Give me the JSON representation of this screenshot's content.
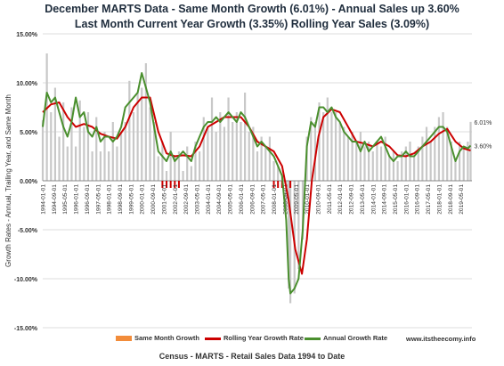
{
  "title_line1": "December MARTS Data -  Same Month Growth (6.01%) - Annual Sales up 3.60%",
  "title_line2": "Last Month Current Year Growth (3.35%)  Rolling Year Sales (3.09%)",
  "footer": "Census - MARTS - Retail Sales Data 1994 to Date",
  "site": "www.itstheecomy.info",
  "colors": {
    "bars": "#c8c8c8",
    "legend_bar": "#f28c3a",
    "rolling": "#cc0000",
    "annual": "#4a8f2e",
    "grid": "#dddddd",
    "recession": "#cc0000"
  },
  "chart_data": {
    "type": "bar+line",
    "ylabel": "Growth Rates - Annual, Trailing Year, and Same Month",
    "ylim": [
      -15,
      15
    ],
    "y_ticks": [
      "15.00%",
      "10.00%",
      "5.00%",
      "0.00%",
      "-5.00%",
      "-10.00%",
      "-15.00%"
    ],
    "y_tick_values": [
      15,
      10,
      5,
      0,
      -5,
      -10,
      -15
    ],
    "x_ticks": [
      "1994-01-01",
      "1994-09-01",
      "1995-05-01",
      "1996-01-01",
      "1996-09-01",
      "1997-05-01",
      "1998-01-01",
      "1998-09-01",
      "1999-05-01",
      "2000-01-01",
      "2000-09-01",
      "2001-05-01",
      "2002-01-01",
      "2002-09-01",
      "2003-05-01",
      "2004-01-01",
      "2004-09-01",
      "2005-05-01",
      "2006-01-01",
      "2006-09-01",
      "2007-05-01",
      "2008-01-01",
      "2008-09-01",
      "2009-05-01",
      "2010-01-01",
      "2010-09-01",
      "2011-05-01",
      "2012-01-01",
      "2012-09-01",
      "2013-05-01",
      "2014-01-01",
      "2014-09-01",
      "2015-05-01",
      "2016-01-01",
      "2016-09-01",
      "2017-05-01",
      "2018-01-01",
      "2018-09-01",
      "2019-05-01"
    ],
    "x_start": 1994.0,
    "x_end": 2020.0,
    "annotations": [
      {
        "text": "6.01%",
        "x": 2019.92,
        "y": 6.01
      },
      {
        "text": "3.60%",
        "x": 2019.92,
        "y": 3.6
      }
    ],
    "recession_marks": [
      2001.25,
      2001.5,
      2001.75,
      2002.0,
      2002.25,
      2008.0,
      2008.25,
      2008.5,
      2009.0
    ],
    "series": [
      {
        "name": "Same Month Growth",
        "kind": "bar",
        "points": [
          [
            1994.0,
            6.2
          ],
          [
            1994.25,
            13.0
          ],
          [
            1994.5,
            7.0
          ],
          [
            1994.75,
            9.5
          ],
          [
            1995.0,
            4.5
          ],
          [
            1995.25,
            8.0
          ],
          [
            1995.5,
            3.5
          ],
          [
            1995.75,
            7.5
          ],
          [
            1996.0,
            3.5
          ],
          [
            1996.25,
            8.2
          ],
          [
            1996.5,
            5.5
          ],
          [
            1996.75,
            7.0
          ],
          [
            1997.0,
            3.0
          ],
          [
            1997.25,
            6.5
          ],
          [
            1997.5,
            3.0
          ],
          [
            1997.75,
            5.0
          ],
          [
            1998.0,
            3.0
          ],
          [
            1998.25,
            6.0
          ],
          [
            1998.5,
            3.5
          ],
          [
            1998.75,
            5.0
          ],
          [
            1999.0,
            6.0
          ],
          [
            1999.25,
            10.2
          ],
          [
            1999.5,
            7.0
          ],
          [
            1999.75,
            9.0
          ],
          [
            2000.0,
            9.5
          ],
          [
            2000.25,
            12.0
          ],
          [
            2000.5,
            7.5
          ],
          [
            2000.75,
            6.0
          ],
          [
            2001.0,
            2.5
          ],
          [
            2001.25,
            4.0
          ],
          [
            2001.5,
            1.0
          ],
          [
            2001.75,
            5.0
          ],
          [
            2002.0,
            2.5
          ],
          [
            2002.25,
            3.0
          ],
          [
            2002.5,
            1.0
          ],
          [
            2002.75,
            3.5
          ],
          [
            2003.0,
            1.5
          ],
          [
            2003.25,
            4.0
          ],
          [
            2003.5,
            3.0
          ],
          [
            2003.75,
            6.5
          ],
          [
            2004.0,
            5.5
          ],
          [
            2004.25,
            8.5
          ],
          [
            2004.5,
            5.0
          ],
          [
            2004.75,
            7.0
          ],
          [
            2005.0,
            5.5
          ],
          [
            2005.25,
            8.5
          ],
          [
            2005.5,
            6.0
          ],
          [
            2005.75,
            7.0
          ],
          [
            2006.0,
            6.0
          ],
          [
            2006.25,
            9.0
          ],
          [
            2006.5,
            5.0
          ],
          [
            2006.75,
            5.5
          ],
          [
            2007.0,
            3.0
          ],
          [
            2007.25,
            4.5
          ],
          [
            2007.5,
            3.5
          ],
          [
            2007.75,
            4.5
          ],
          [
            2008.0,
            2.0
          ],
          [
            2008.25,
            1.5
          ],
          [
            2008.5,
            0.5
          ],
          [
            2008.75,
            -3.0
          ],
          [
            2008.9,
            -11.0
          ],
          [
            2009.0,
            -12.5
          ],
          [
            2009.25,
            -11.5
          ],
          [
            2009.5,
            -9.0
          ],
          [
            2009.75,
            -6.0
          ],
          [
            2010.0,
            4.5
          ],
          [
            2010.25,
            6.5
          ],
          [
            2010.5,
            6.0
          ],
          [
            2010.75,
            8.0
          ],
          [
            2011.0,
            7.0
          ],
          [
            2011.25,
            8.5
          ],
          [
            2011.5,
            7.0
          ],
          [
            2011.75,
            7.0
          ],
          [
            2012.0,
            6.0
          ],
          [
            2012.25,
            5.5
          ],
          [
            2012.5,
            4.5
          ],
          [
            2012.75,
            5.0
          ],
          [
            2013.0,
            4.0
          ],
          [
            2013.25,
            5.0
          ],
          [
            2013.5,
            3.5
          ],
          [
            2013.75,
            4.0
          ],
          [
            2014.0,
            3.0
          ],
          [
            2014.25,
            4.0
          ],
          [
            2014.5,
            3.5
          ],
          [
            2014.75,
            4.5
          ],
          [
            2015.0,
            2.5
          ],
          [
            2015.25,
            3.0
          ],
          [
            2015.5,
            2.0
          ],
          [
            2015.75,
            3.0
          ],
          [
            2016.0,
            3.5
          ],
          [
            2016.25,
            4.0
          ],
          [
            2016.5,
            2.5
          ],
          [
            2016.75,
            3.5
          ],
          [
            2017.0,
            4.5
          ],
          [
            2017.25,
            5.5
          ],
          [
            2017.5,
            4.0
          ],
          [
            2017.75,
            5.5
          ],
          [
            2018.0,
            6.5
          ],
          [
            2018.25,
            7.0
          ],
          [
            2018.5,
            5.5
          ],
          [
            2018.75,
            4.0
          ],
          [
            2019.0,
            2.0
          ],
          [
            2019.25,
            4.0
          ],
          [
            2019.5,
            3.5
          ],
          [
            2019.75,
            4.0
          ],
          [
            2019.92,
            6.01
          ]
        ]
      },
      {
        "name": "Rolling Year Growth Rate",
        "kind": "line",
        "points": [
          [
            1994.0,
            7.0
          ],
          [
            1994.5,
            7.8
          ],
          [
            1995.0,
            8.0
          ],
          [
            1995.5,
            6.5
          ],
          [
            1996.0,
            5.5
          ],
          [
            1996.5,
            5.8
          ],
          [
            1997.0,
            5.5
          ],
          [
            1997.5,
            4.8
          ],
          [
            1998.0,
            4.5
          ],
          [
            1998.5,
            4.3
          ],
          [
            1999.0,
            5.5
          ],
          [
            1999.5,
            7.5
          ],
          [
            2000.0,
            8.5
          ],
          [
            2000.5,
            8.5
          ],
          [
            2001.0,
            5.0
          ],
          [
            2001.5,
            2.8
          ],
          [
            2002.0,
            2.5
          ],
          [
            2002.5,
            2.6
          ],
          [
            2003.0,
            2.5
          ],
          [
            2003.5,
            3.5
          ],
          [
            2004.0,
            5.5
          ],
          [
            2004.5,
            6.0
          ],
          [
            2005.0,
            6.5
          ],
          [
            2005.5,
            6.5
          ],
          [
            2006.0,
            6.5
          ],
          [
            2006.5,
            5.5
          ],
          [
            2007.0,
            4.0
          ],
          [
            2007.5,
            3.5
          ],
          [
            2008.0,
            3.0
          ],
          [
            2008.5,
            1.5
          ],
          [
            2008.9,
            -2.0
          ],
          [
            2009.3,
            -7.0
          ],
          [
            2009.7,
            -9.5
          ],
          [
            2010.0,
            -6.0
          ],
          [
            2010.3,
            0.0
          ],
          [
            2010.7,
            4.5
          ],
          [
            2011.0,
            6.5
          ],
          [
            2011.5,
            7.3
          ],
          [
            2012.0,
            7.0
          ],
          [
            2012.5,
            5.5
          ],
          [
            2013.0,
            4.0
          ],
          [
            2013.5,
            3.8
          ],
          [
            2014.0,
            3.5
          ],
          [
            2014.5,
            4.0
          ],
          [
            2015.0,
            3.5
          ],
          [
            2015.5,
            2.6
          ],
          [
            2016.0,
            2.5
          ],
          [
            2016.5,
            2.8
          ],
          [
            2017.0,
            3.5
          ],
          [
            2017.5,
            4.0
          ],
          [
            2018.0,
            4.8
          ],
          [
            2018.5,
            5.3
          ],
          [
            2019.0,
            4.0
          ],
          [
            2019.5,
            3.3
          ],
          [
            2019.92,
            3.09
          ]
        ]
      },
      {
        "name": "Annual Growth Rate",
        "kind": "line",
        "points": [
          [
            1994.0,
            5.5
          ],
          [
            1994.25,
            9.0
          ],
          [
            1994.5,
            8.0
          ],
          [
            1994.75,
            8.5
          ],
          [
            1995.0,
            7.0
          ],
          [
            1995.25,
            5.5
          ],
          [
            1995.5,
            4.5
          ],
          [
            1995.75,
            6.0
          ],
          [
            1996.0,
            8.5
          ],
          [
            1996.25,
            6.5
          ],
          [
            1996.5,
            7.0
          ],
          [
            1996.75,
            5.0
          ],
          [
            1997.0,
            4.5
          ],
          [
            1997.25,
            5.5
          ],
          [
            1997.5,
            4.0
          ],
          [
            1997.75,
            4.5
          ],
          [
            1998.0,
            4.5
          ],
          [
            1998.25,
            4.0
          ],
          [
            1998.5,
            4.5
          ],
          [
            1998.75,
            5.5
          ],
          [
            1999.0,
            7.5
          ],
          [
            1999.25,
            8.0
          ],
          [
            1999.5,
            8.5
          ],
          [
            1999.75,
            9.0
          ],
          [
            2000.0,
            11.0
          ],
          [
            2000.25,
            9.5
          ],
          [
            2000.5,
            8.0
          ],
          [
            2000.75,
            5.5
          ],
          [
            2001.0,
            3.0
          ],
          [
            2001.25,
            2.5
          ],
          [
            2001.5,
            2.0
          ],
          [
            2001.75,
            3.0
          ],
          [
            2002.0,
            2.0
          ],
          [
            2002.25,
            2.5
          ],
          [
            2002.5,
            3.0
          ],
          [
            2002.75,
            2.5
          ],
          [
            2003.0,
            2.0
          ],
          [
            2003.25,
            3.5
          ],
          [
            2003.5,
            4.5
          ],
          [
            2003.75,
            5.5
          ],
          [
            2004.0,
            6.0
          ],
          [
            2004.25,
            6.0
          ],
          [
            2004.5,
            6.5
          ],
          [
            2004.75,
            6.0
          ],
          [
            2005.0,
            6.5
          ],
          [
            2005.25,
            7.0
          ],
          [
            2005.5,
            6.5
          ],
          [
            2005.75,
            6.0
          ],
          [
            2006.0,
            7.0
          ],
          [
            2006.25,
            6.5
          ],
          [
            2006.5,
            5.5
          ],
          [
            2006.75,
            4.5
          ],
          [
            2007.0,
            3.5
          ],
          [
            2007.25,
            4.0
          ],
          [
            2007.5,
            3.5
          ],
          [
            2007.75,
            3.0
          ],
          [
            2008.0,
            2.5
          ],
          [
            2008.25,
            1.5
          ],
          [
            2008.5,
            0.5
          ],
          [
            2008.75,
            -4.0
          ],
          [
            2008.9,
            -10.0
          ],
          [
            2009.0,
            -11.5
          ],
          [
            2009.25,
            -11.0
          ],
          [
            2009.5,
            -10.0
          ],
          [
            2009.75,
            -5.0
          ],
          [
            2010.0,
            3.5
          ],
          [
            2010.25,
            6.0
          ],
          [
            2010.5,
            5.5
          ],
          [
            2010.75,
            7.5
          ],
          [
            2011.0,
            7.5
          ],
          [
            2011.25,
            7.0
          ],
          [
            2011.5,
            7.5
          ],
          [
            2011.75,
            6.5
          ],
          [
            2012.0,
            6.0
          ],
          [
            2012.25,
            5.0
          ],
          [
            2012.5,
            4.5
          ],
          [
            2012.75,
            4.0
          ],
          [
            2013.0,
            4.0
          ],
          [
            2013.25,
            3.0
          ],
          [
            2013.5,
            4.0
          ],
          [
            2013.75,
            3.0
          ],
          [
            2014.0,
            3.5
          ],
          [
            2014.25,
            4.0
          ],
          [
            2014.5,
            4.5
          ],
          [
            2014.75,
            3.5
          ],
          [
            2015.0,
            2.5
          ],
          [
            2015.25,
            2.0
          ],
          [
            2015.5,
            2.5
          ],
          [
            2015.75,
            2.5
          ],
          [
            2016.0,
            3.0
          ],
          [
            2016.25,
            2.5
          ],
          [
            2016.5,
            2.5
          ],
          [
            2016.75,
            3.0
          ],
          [
            2017.0,
            3.5
          ],
          [
            2017.25,
            4.0
          ],
          [
            2017.5,
            4.5
          ],
          [
            2017.75,
            5.0
          ],
          [
            2018.0,
            5.5
          ],
          [
            2018.25,
            5.5
          ],
          [
            2018.5,
            5.0
          ],
          [
            2018.75,
            3.5
          ],
          [
            2019.0,
            2.0
          ],
          [
            2019.25,
            3.0
          ],
          [
            2019.5,
            3.5
          ],
          [
            2019.75,
            3.3
          ],
          [
            2019.92,
            3.6
          ]
        ]
      }
    ]
  },
  "legend": [
    {
      "label": "Same Month Growth"
    },
    {
      "label": "Rolling Year Growth Rate"
    },
    {
      "label": "Annual Growth Rate"
    }
  ]
}
